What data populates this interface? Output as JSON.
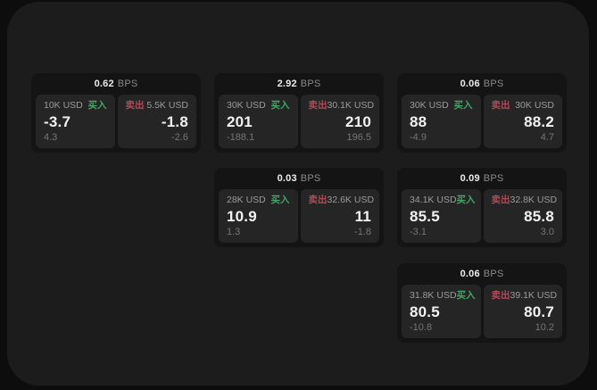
{
  "labels": {
    "bps": "BPS",
    "buy": "买入",
    "sell": "卖出"
  },
  "colors": {
    "buy_green": "#43a566",
    "sell_red": "#b04a58",
    "window_bg": "#1c1c1c",
    "card_bg": "#141414",
    "panel_bg": "#252525"
  },
  "cards": [
    {
      "bps": "0.62",
      "buy": {
        "amount": "10K USD",
        "price": "-3.7",
        "delta": "4.3"
      },
      "sell": {
        "amount": "5.5K USD",
        "price": "-1.8",
        "delta": "-2.6"
      }
    },
    {
      "bps": "2.92",
      "buy": {
        "amount": "30K USD",
        "price": "201",
        "delta": "-188.1"
      },
      "sell": {
        "amount": "30.1K USD",
        "price": "210",
        "delta": "196.5"
      }
    },
    {
      "bps": "0.06",
      "buy": {
        "amount": "30K USD",
        "price": "88",
        "delta": "-4.9"
      },
      "sell": {
        "amount": "30K USD",
        "price": "88.2",
        "delta": "4.7"
      }
    },
    {
      "bps": "0.03",
      "buy": {
        "amount": "28K USD",
        "price": "10.9",
        "delta": "1.3"
      },
      "sell": {
        "amount": "32.6K USD",
        "price": "11",
        "delta": "-1.8"
      }
    },
    {
      "bps": "0.09",
      "buy": {
        "amount": "34.1K USD",
        "price": "85.5",
        "delta": "-3.1"
      },
      "sell": {
        "amount": "32.8K USD",
        "price": "85.8",
        "delta": "3.0"
      }
    },
    {
      "bps": "0.06",
      "buy": {
        "amount": "31.8K USD",
        "price": "80.5",
        "delta": "-10.8"
      },
      "sell": {
        "amount": "39.1K USD",
        "price": "80.7",
        "delta": "10.2"
      }
    }
  ]
}
